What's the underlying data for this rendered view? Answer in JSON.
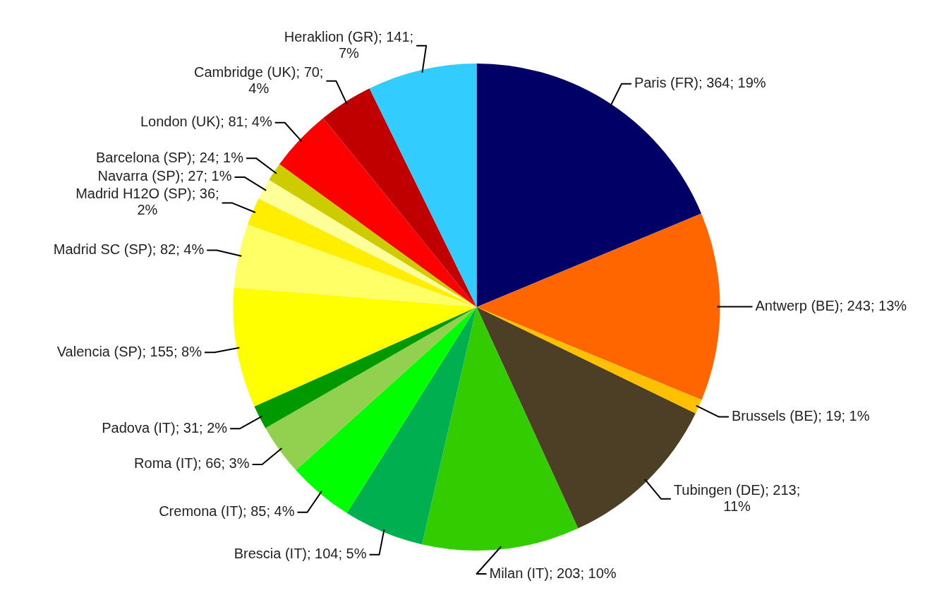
{
  "chart_data": {
    "type": "pie",
    "categories": [
      "Paris (FR)",
      "Antwerp (BE)",
      "Brussels (BE)",
      "Tubingen (DE)",
      "Milan (IT)",
      "Brescia (IT)",
      "Cremona (IT)",
      "Roma (IT)",
      "Padova (IT)",
      "Valencia (SP)",
      "Madrid SC (SP)",
      "Madrid H12O (SP)",
      "Navarra (SP)",
      "Barcelona (SP)",
      "London (UK)",
      "Cambridge (UK)",
      "Heraklion (GR)"
    ],
    "values": [
      364,
      243,
      19,
      213,
      203,
      104,
      85,
      66,
      31,
      155,
      82,
      36,
      27,
      24,
      81,
      70,
      141
    ],
    "value_labels": [
      "364; 19%",
      "243; 13%",
      "19; 1%",
      "213; 11%",
      "203; 10%",
      "104; 5%",
      "85; 4%",
      "66; 3%",
      "31; 2%",
      "155; 8%",
      "82; 4%",
      "36; 2%",
      "27; 1%",
      "24; 1%",
      "81; 4%",
      "70; 4%",
      "141; 7%"
    ],
    "colors": [
      "#000066",
      "#ff6600",
      "#ffc000",
      "#4d3f26",
      "#33cc00",
      "#00b050",
      "#00ff00",
      "#92d050",
      "#009900",
      "#ffff00",
      "#ffff66",
      "#ffee00",
      "#ffff99",
      "#cccc00",
      "#ff0000",
      "#c00000",
      "#33ccff"
    ],
    "legend": false
  }
}
